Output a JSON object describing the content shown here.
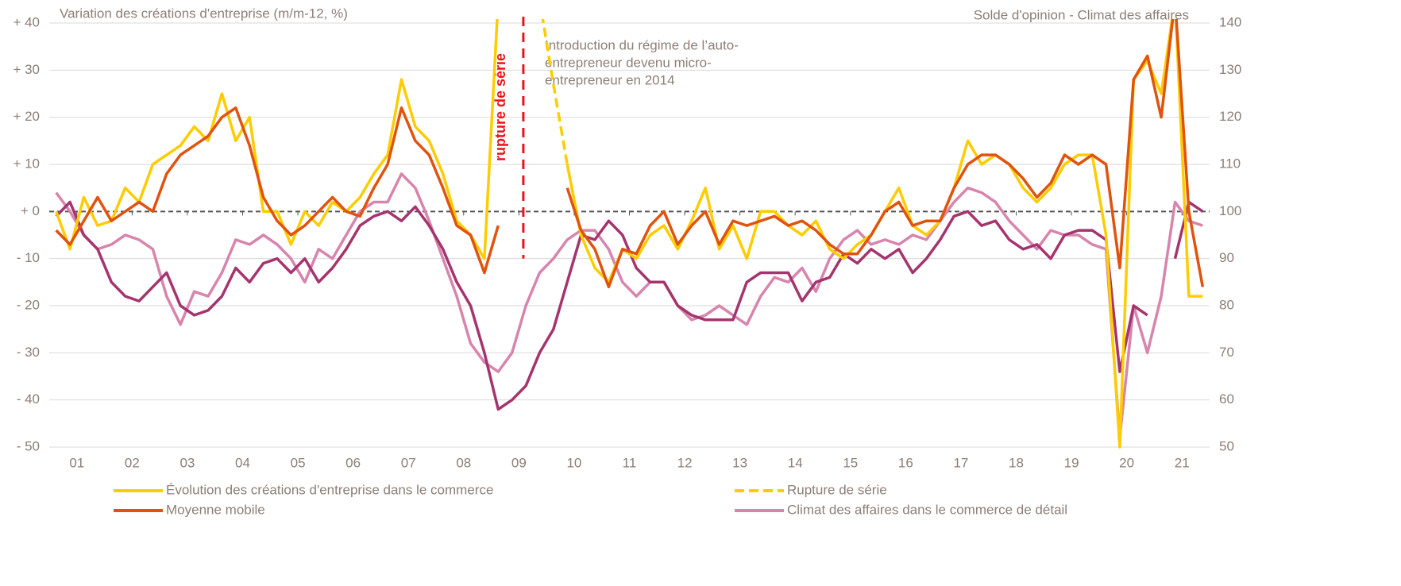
{
  "chart_data": {
    "type": "line",
    "title": "Variation des créations d'entreprise (m/m-12, %)",
    "y2_title": "Solde d'opinion - Climat des affaires",
    "annotation": [
      "Introduction du régime de l’auto-",
      "entrepreneur devenu micro-",
      "entrepreneur en 2014"
    ],
    "break_label": "rupture de série",
    "break_x": 2009.58,
    "break_bottom": -10,
    "xlim": [
      2001,
      2022
    ],
    "xticks": [
      {
        "value": 2001.5,
        "label": "01"
      },
      {
        "value": 2002.5,
        "label": "02"
      },
      {
        "value": 2003.5,
        "label": "03"
      },
      {
        "value": 2004.5,
        "label": "04"
      },
      {
        "value": 2005.5,
        "label": "05"
      },
      {
        "value": 2006.5,
        "label": "06"
      },
      {
        "value": 2007.5,
        "label": "07"
      },
      {
        "value": 2008.5,
        "label": "08"
      },
      {
        "value": 2009.5,
        "label": "09"
      },
      {
        "value": 2010.5,
        "label": "10"
      },
      {
        "value": 2011.5,
        "label": "11"
      },
      {
        "value": 2012.5,
        "label": "12"
      },
      {
        "value": 2013.5,
        "label": "13"
      },
      {
        "value": 2014.5,
        "label": "14"
      },
      {
        "value": 2015.5,
        "label": "15"
      },
      {
        "value": 2016.5,
        "label": "16"
      },
      {
        "value": 2017.5,
        "label": "17"
      },
      {
        "value": 2018.5,
        "label": "18"
      },
      {
        "value": 2019.5,
        "label": "19"
      },
      {
        "value": 2020.5,
        "label": "20"
      },
      {
        "value": 2021.5,
        "label": "21"
      }
    ],
    "ylim": [
      -50,
      40
    ],
    "yticks": [
      {
        "value": 40,
        "label": "+ 40"
      },
      {
        "value": 30,
        "label": "+ 30"
      },
      {
        "value": 20,
        "label": "+ 20"
      },
      {
        "value": 10,
        "label": "+ 10"
      },
      {
        "value": 0,
        "label": "+ 0"
      },
      {
        "value": -10,
        "label": "- 10"
      },
      {
        "value": -20,
        "label": "- 20"
      },
      {
        "value": -30,
        "label": "- 30"
      },
      {
        "value": -40,
        "label": "- 40"
      },
      {
        "value": -50,
        "label": "- 50"
      }
    ],
    "y2lim": [
      50,
      140
    ],
    "y2ticks": [
      140,
      130,
      120,
      110,
      100,
      90,
      80,
      70,
      60,
      50
    ],
    "grid": true,
    "x": [
      2001.125,
      2001.375,
      2001.625,
      2001.875,
      2002.125,
      2002.375,
      2002.625,
      2002.875,
      2003.125,
      2003.375,
      2003.625,
      2003.875,
      2004.125,
      2004.375,
      2004.625,
      2004.875,
      2005.125,
      2005.375,
      2005.625,
      2005.875,
      2006.125,
      2006.375,
      2006.625,
      2006.875,
      2007.125,
      2007.375,
      2007.625,
      2007.875,
      2008.125,
      2008.375,
      2008.625,
      2008.875,
      2009.125,
      2009.375,
      2009.625,
      2009.875,
      2010.125,
      2010.375,
      2010.625,
      2010.875,
      2011.125,
      2011.375,
      2011.625,
      2011.875,
      2012.125,
      2012.375,
      2012.625,
      2012.875,
      2013.125,
      2013.375,
      2013.625,
      2013.875,
      2014.125,
      2014.375,
      2014.625,
      2014.875,
      2015.125,
      2015.375,
      2015.625,
      2015.875,
      2016.125,
      2016.375,
      2016.625,
      2016.875,
      2017.125,
      2017.375,
      2017.625,
      2017.875,
      2018.125,
      2018.375,
      2018.625,
      2018.875,
      2019.125,
      2019.375,
      2019.625,
      2019.875,
      2020.125,
      2020.375,
      2020.625,
      2020.875,
      2021.125,
      2021.375,
      2021.625,
      2021.875
    ],
    "series": [
      {
        "name": "Évolution des créations d'entreprise dans le commerce",
        "color": "#ffcc00",
        "dash": false,
        "values": [
          0,
          -8,
          3,
          -3,
          -2,
          5,
          2,
          10,
          12,
          14,
          18,
          15,
          25,
          15,
          20,
          0,
          0,
          -7,
          0,
          -3,
          2,
          0,
          3,
          8,
          12,
          28,
          18,
          15,
          8,
          -2,
          -5,
          -10,
          45,
          null,
          null,
          null,
          null,
          10,
          -5,
          -12,
          -15,
          -8,
          -10,
          -5,
          -3,
          -8,
          -2,
          5,
          -8,
          -3,
          -10,
          0,
          0,
          -3,
          -5,
          -2,
          -8,
          -10,
          -7,
          -5,
          0,
          5,
          -3,
          -5,
          -2,
          5,
          15,
          10,
          12,
          10,
          5,
          2,
          5,
          10,
          12,
          12,
          -5,
          -50,
          28,
          32,
          25,
          45,
          -18,
          -18
        ]
      },
      {
        "name": "Rupture de série",
        "color": "#ffcc00",
        "dash": true,
        "values": [
          null,
          null,
          null,
          null,
          null,
          null,
          null,
          null,
          null,
          null,
          null,
          null,
          null,
          null,
          null,
          null,
          null,
          null,
          null,
          null,
          null,
          null,
          null,
          null,
          null,
          null,
          null,
          null,
          null,
          null,
          null,
          null,
          null,
          null,
          null,
          45,
          27,
          10,
          null,
          null,
          null,
          null,
          null,
          null,
          null,
          null,
          null,
          null,
          null,
          null,
          null,
          null,
          null,
          null,
          null,
          null,
          null,
          null,
          null,
          null,
          null,
          null,
          null,
          null,
          null,
          null,
          null,
          null,
          null,
          null,
          null,
          null,
          null,
          null,
          null,
          null,
          null,
          null,
          null,
          null,
          null,
          null,
          null,
          null
        ]
      },
      {
        "name": "Moyenne mobile",
        "color": "#e0530f",
        "dash": false,
        "values": [
          -4,
          -7,
          -2,
          3,
          -2,
          0,
          2,
          0,
          8,
          12,
          14,
          16,
          20,
          22,
          14,
          3,
          -2,
          -5,
          -3,
          0,
          3,
          0,
          -1,
          5,
          10,
          22,
          15,
          12,
          5,
          -3,
          -5,
          -13,
          -3,
          null,
          null,
          null,
          null,
          5,
          -4,
          -8,
          -16,
          -8,
          -9,
          -3,
          0,
          -7,
          -3,
          0,
          -7,
          -2,
          -3,
          -2,
          -1,
          -3,
          -2,
          -4,
          -7,
          -9,
          -9,
          -5,
          0,
          2,
          -3,
          -2,
          -2,
          5,
          10,
          12,
          12,
          10,
          7,
          3,
          6,
          12,
          10,
          12,
          10,
          -12,
          28,
          33,
          20,
          45,
          0,
          -16
        ]
      },
      {
        "name": "Climat des affaires dans le commerce de détail",
        "color": "#d884ad",
        "dash": false,
        "axis": "y2",
        "values": [
          104,
          100,
          95,
          92,
          93,
          95,
          94,
          92,
          82,
          76,
          83,
          82,
          87,
          94,
          93,
          95,
          93,
          90,
          85,
          92,
          90,
          95,
          100,
          102,
          102,
          108,
          105,
          98,
          90,
          82,
          72,
          68,
          66,
          70,
          80,
          87,
          90,
          94,
          96,
          96,
          92,
          85,
          82,
          85,
          85,
          80,
          77,
          78,
          80,
          78,
          76,
          82,
          86,
          85,
          88,
          83,
          90,
          94,
          96,
          93,
          94,
          93,
          95,
          94,
          98,
          102,
          105,
          104,
          102,
          98,
          95,
          92,
          96,
          95,
          95,
          93,
          92,
          52,
          80,
          70,
          82,
          102,
          98,
          97
        ]
      },
      {
        "color": "#a5346e",
        "dash": false,
        "axis": "y2",
        "values": [
          99,
          102,
          95,
          92,
          85,
          82,
          81,
          84,
          87,
          80,
          78,
          79,
          82,
          88,
          85,
          89,
          90,
          87,
          90,
          85,
          88,
          92,
          97,
          99,
          100,
          98,
          101,
          97,
          92,
          85,
          80,
          70,
          58,
          60,
          63,
          70,
          75,
          85,
          95,
          94,
          98,
          95,
          88,
          85,
          85,
          80,
          78,
          77,
          77,
          77,
          85,
          87,
          87,
          87,
          81,
          85,
          86,
          91,
          89,
          92,
          90,
          92,
          87,
          90,
          94,
          99,
          100,
          97,
          98,
          94,
          92,
          93,
          90,
          95,
          96,
          96,
          94,
          66,
          80,
          78,
          null,
          90,
          102,
          100
        ]
      }
    ]
  }
}
